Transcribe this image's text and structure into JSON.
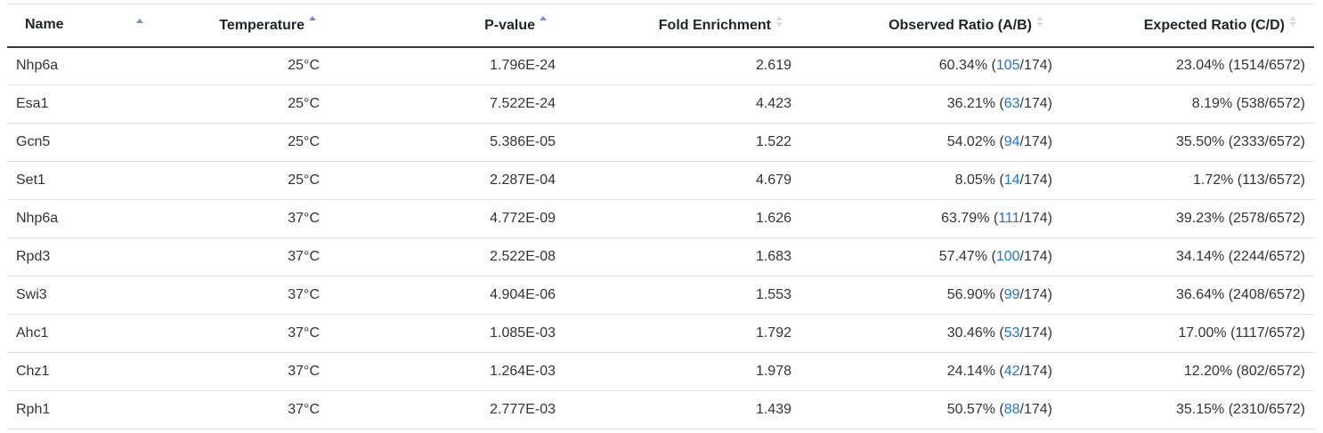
{
  "columns": {
    "name": "Name",
    "temperature": "Temperature",
    "pvalue": "P-value",
    "fold": "Fold Enrichment",
    "observed": "Observed Ratio (A/B)",
    "expected": "Expected Ratio (C/D)"
  },
  "sort_icons": {
    "name": "sort-asc-icon",
    "temperature": "sort-asc-icon",
    "pvalue": "sort-asc-icon",
    "fold": "sort-neutral-icon",
    "observed": "sort-neutral-icon",
    "expected": "sort-neutral-icon"
  },
  "colors": {
    "link": "#1a73e8",
    "sort_active": "#7a8bd6",
    "sort_inactive": "#dcdcdc"
  },
  "rows": [
    {
      "name": "Nhp6a",
      "temperature": "25°C",
      "pvalue": "1.796E-24",
      "fold": "2.619",
      "obs_pct": "60.34% (",
      "obs_count": "105",
      "obs_total": "/174)",
      "expected": "23.04% (1514/6572)"
    },
    {
      "name": "Esa1",
      "temperature": "25°C",
      "pvalue": "7.522E-24",
      "fold": "4.423",
      "obs_pct": "36.21% (",
      "obs_count": "63",
      "obs_total": "/174)",
      "expected": "8.19% (538/6572)"
    },
    {
      "name": "Gcn5",
      "temperature": "25°C",
      "pvalue": "5.386E-05",
      "fold": "1.522",
      "obs_pct": "54.02% (",
      "obs_count": "94",
      "obs_total": "/174)",
      "expected": "35.50% (2333/6572)"
    },
    {
      "name": "Set1",
      "temperature": "25°C",
      "pvalue": "2.287E-04",
      "fold": "4.679",
      "obs_pct": "8.05% (",
      "obs_count": "14",
      "obs_total": "/174)",
      "expected": "1.72% (113/6572)"
    },
    {
      "name": "Nhp6a",
      "temperature": "37°C",
      "pvalue": "4.772E-09",
      "fold": "1.626",
      "obs_pct": "63.79% (",
      "obs_count": "111",
      "obs_total": "/174)",
      "expected": "39.23% (2578/6572)"
    },
    {
      "name": "Rpd3",
      "temperature": "37°C",
      "pvalue": "2.522E-08",
      "fold": "1.683",
      "obs_pct": "57.47% (",
      "obs_count": "100",
      "obs_total": "/174)",
      "expected": "34.14% (2244/6572)"
    },
    {
      "name": "Swi3",
      "temperature": "37°C",
      "pvalue": "4.904E-06",
      "fold": "1.553",
      "obs_pct": "56.90% (",
      "obs_count": "99",
      "obs_total": "/174)",
      "expected": "36.64% (2408/6572)"
    },
    {
      "name": "Ahc1",
      "temperature": "37°C",
      "pvalue": "1.085E-03",
      "fold": "1.792",
      "obs_pct": "30.46% (",
      "obs_count": "53",
      "obs_total": "/174)",
      "expected": "17.00% (1117/6572)"
    },
    {
      "name": "Chz1",
      "temperature": "37°C",
      "pvalue": "1.264E-03",
      "fold": "1.978",
      "obs_pct": "24.14% (",
      "obs_count": "42",
      "obs_total": "/174)",
      "expected": "12.20% (802/6572)"
    },
    {
      "name": "Rph1",
      "temperature": "37°C",
      "pvalue": "2.777E-03",
      "fold": "1.439",
      "obs_pct": "50.57% (",
      "obs_count": "88",
      "obs_total": "/174)",
      "expected": "35.15% (2310/6572)"
    }
  ]
}
